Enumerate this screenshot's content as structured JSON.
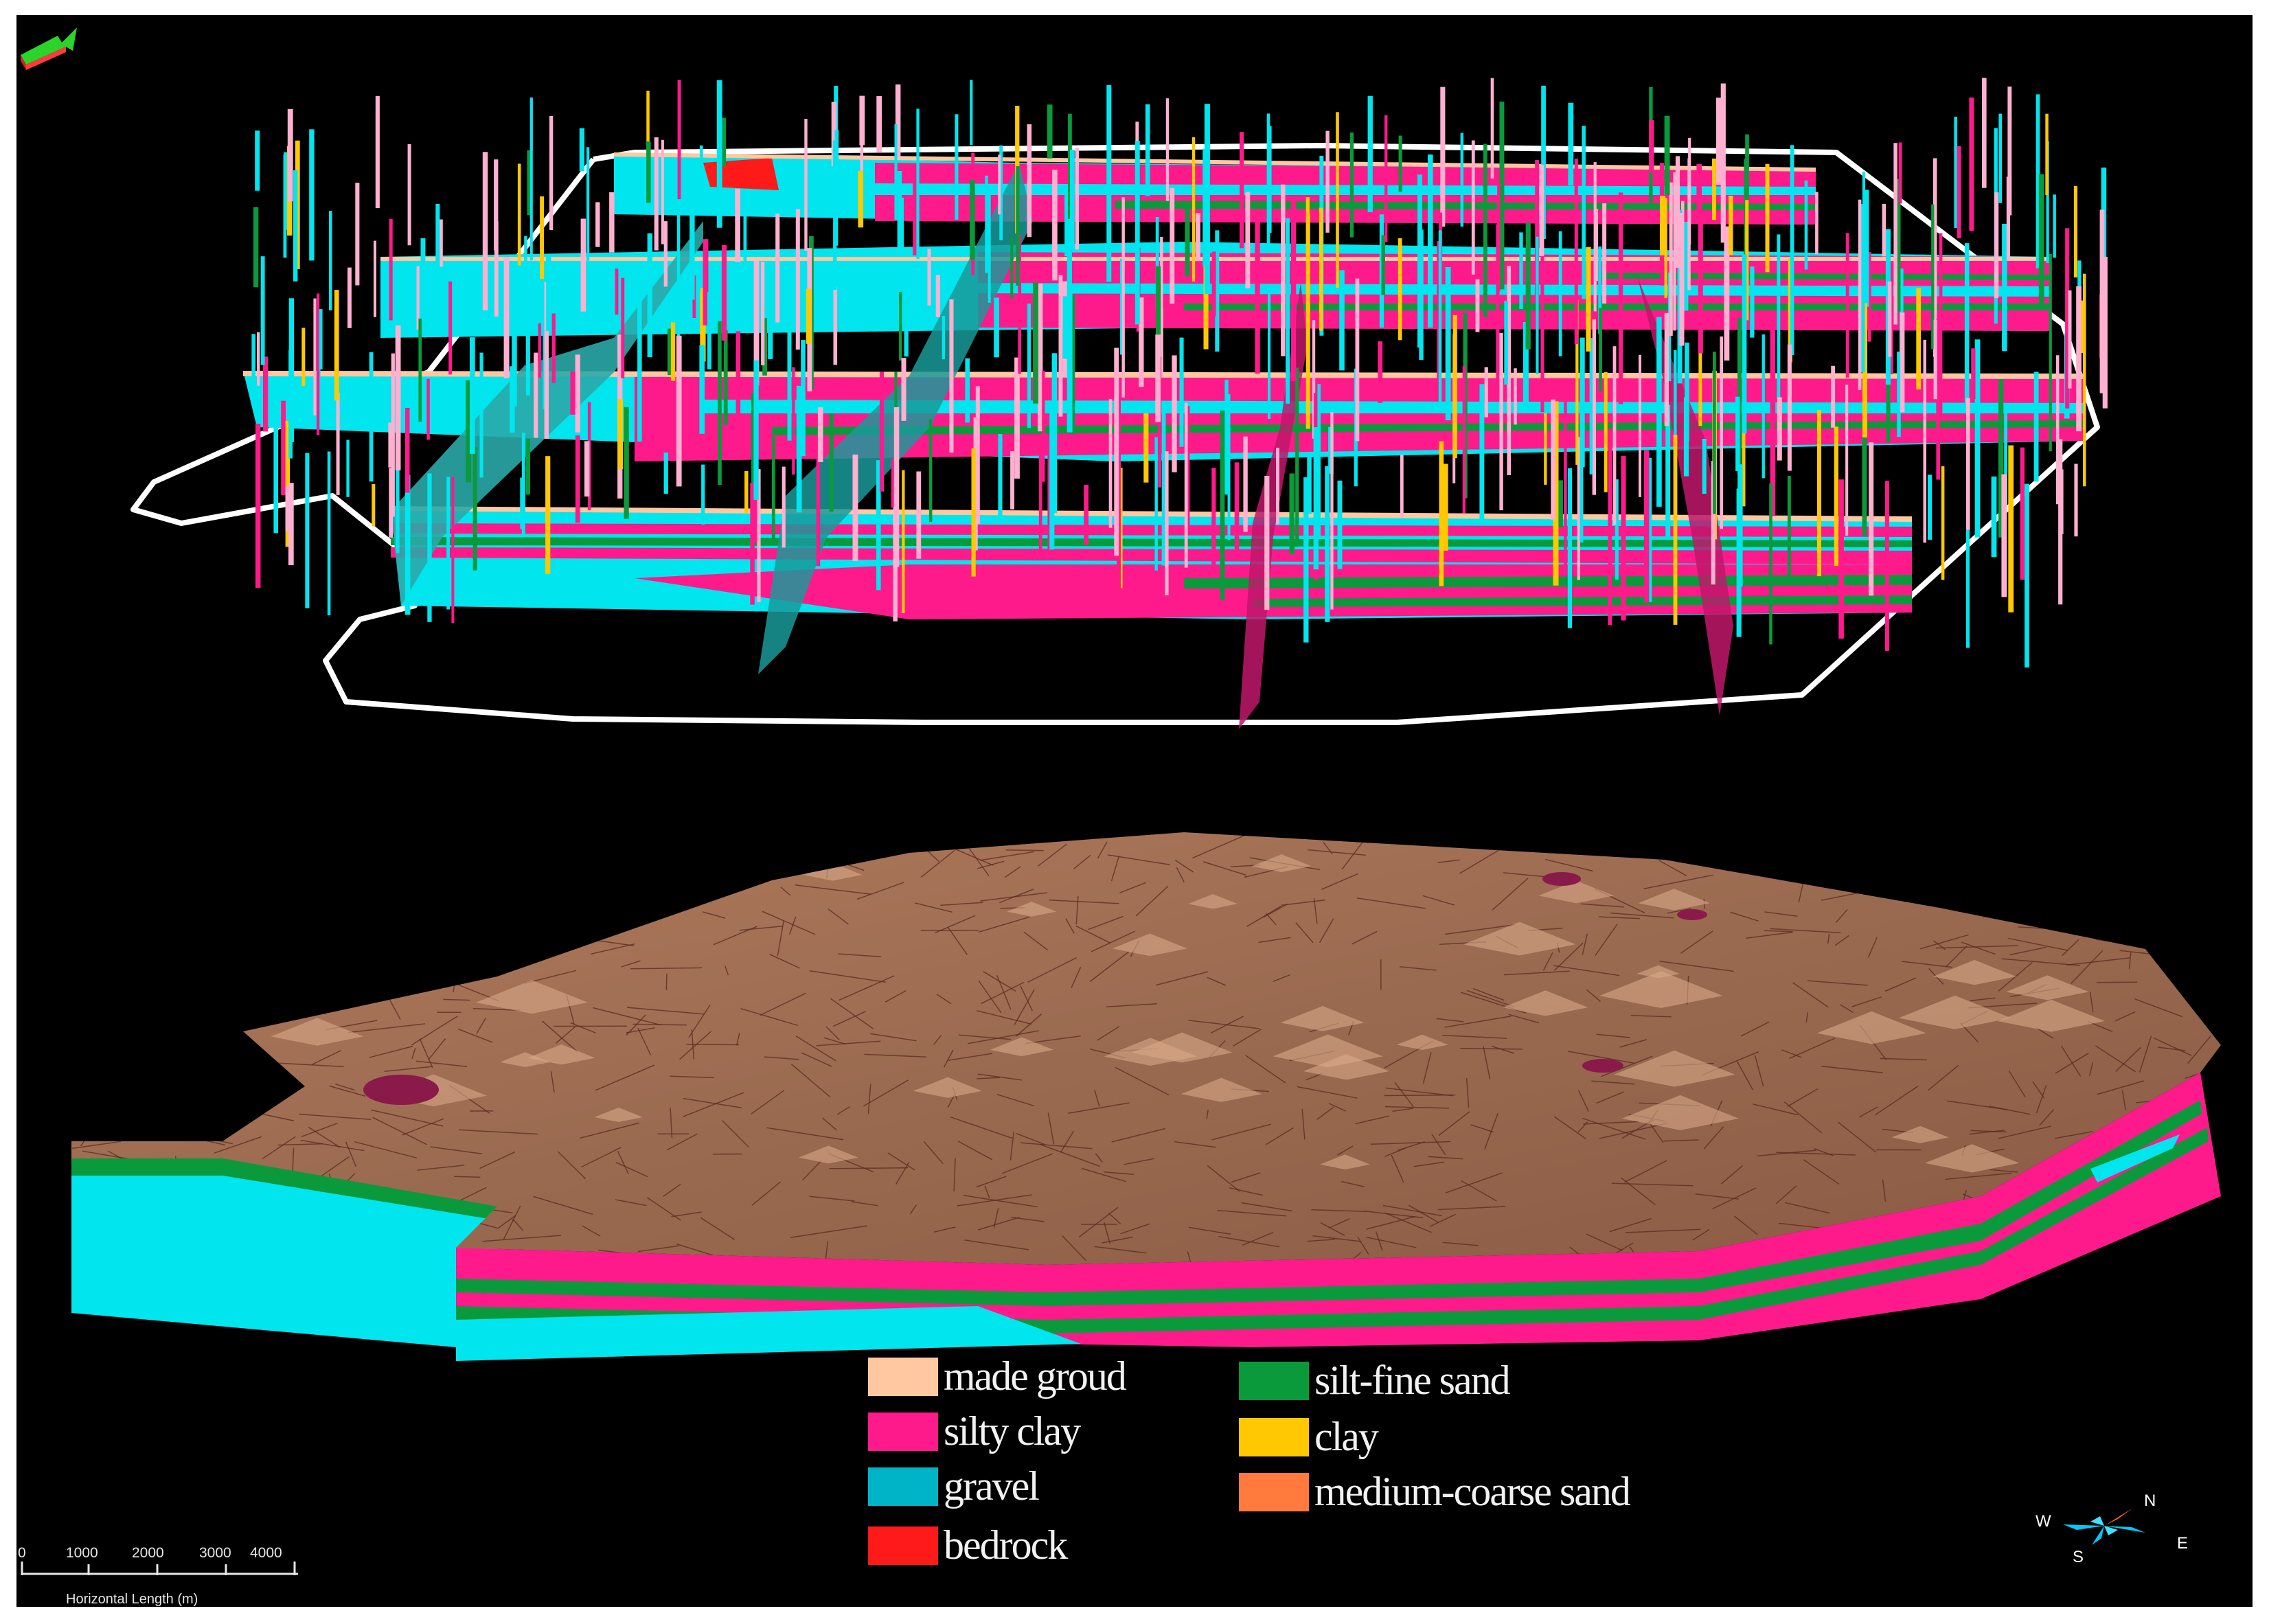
{
  "legend": {
    "items": [
      {
        "label": "made groud",
        "color": "#ffc8a0"
      },
      {
        "label": "silty clay",
        "color": "#ff1a8c"
      },
      {
        "label": "gravel",
        "color": "#00b4c8"
      },
      {
        "label": "bedrock",
        "color": "#ff1a1a"
      },
      {
        "label": "silt-fine sand",
        "color": "#0a9a3c"
      },
      {
        "label": "clay",
        "color": "#ffc800"
      },
      {
        "label": "medium-coarse sand",
        "color": "#ff7a3c"
      }
    ]
  },
  "scale_bar": {
    "ticks": [
      "0",
      "1000",
      "2000",
      "3000",
      "4000"
    ],
    "caption": "Horizontal Length (m)"
  },
  "compass": {
    "north": "N",
    "south": "S",
    "east": "E",
    "west": "W"
  },
  "colors": {
    "background": "#000000",
    "gravel_cyan": "#00e5ee",
    "terrain_surface": "#9a6a50",
    "terrain_mesh": "#5a2a22",
    "boundary_outline": "#ffffff"
  },
  "icons": [
    "axis-arrow-icon",
    "compass-rose-icon"
  ]
}
